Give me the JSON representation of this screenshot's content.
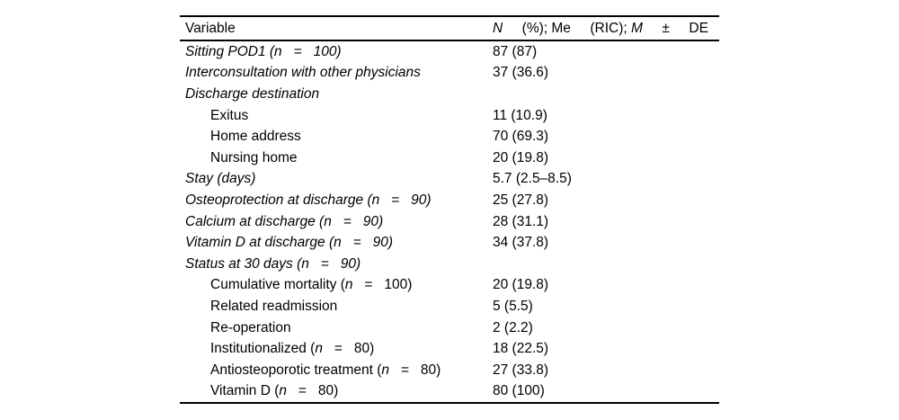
{
  "page": {
    "background": "#ffffff",
    "text_color": "#000000"
  },
  "table": {
    "header": {
      "variable": "Variable",
      "value_segments": [
        [
          {
            "text": "N",
            "italic": true
          }
        ],
        [
          {
            "text": "(%); Me",
            "italic": false
          }
        ],
        [
          {
            "text": "(RIC); ",
            "italic": false
          },
          {
            "text": "M",
            "italic": true
          }
        ],
        [
          {
            "text": "±",
            "italic": false
          }
        ],
        [
          {
            "text": "DE",
            "italic": false
          }
        ]
      ]
    },
    "rows": [
      {
        "indent": 0,
        "label": [
          {
            "text": "Sitting POD1 (n   =   100)",
            "italic": true
          }
        ],
        "value": "87 (87)"
      },
      {
        "indent": 0,
        "label": [
          {
            "text": "Interconsultation with other physicians",
            "italic": true
          }
        ],
        "value": "37 (36.6)"
      },
      {
        "indent": 0,
        "label": [
          {
            "text": "Discharge destination",
            "italic": true
          }
        ],
        "value": ""
      },
      {
        "indent": 1,
        "label": [
          {
            "text": "Exitus",
            "italic": false
          }
        ],
        "value": "11 (10.9)"
      },
      {
        "indent": 1,
        "label": [
          {
            "text": "Home address",
            "italic": false
          }
        ],
        "value": "70 (69.3)"
      },
      {
        "indent": 1,
        "label": [
          {
            "text": "Nursing home",
            "italic": false
          }
        ],
        "value": "20 (19.8)"
      },
      {
        "indent": 0,
        "label": [
          {
            "text": "Stay (days)",
            "italic": true
          }
        ],
        "value": "5.7 (2.5–8.5)"
      },
      {
        "indent": 0,
        "label": [
          {
            "text": "Osteoprotection at discharge (n   =   90)",
            "italic": true
          }
        ],
        "value": "25 (27.8)"
      },
      {
        "indent": 0,
        "label": [
          {
            "text": "Calcium at discharge (n   =   90)",
            "italic": true
          }
        ],
        "value": "28 (31.1)"
      },
      {
        "indent": 0,
        "label": [
          {
            "text": "Vitamin D at discharge (n   =   90)",
            "italic": true
          }
        ],
        "value": "34 (37.8)"
      },
      {
        "indent": 0,
        "label": [
          {
            "text": "Status at 30 days (n   =   90)",
            "italic": true
          }
        ],
        "value": ""
      },
      {
        "indent": 1,
        "label": [
          {
            "text": "Cumulative mortality (",
            "italic": false
          },
          {
            "text": "n",
            "italic": true
          },
          {
            "text": "   =   100)",
            "italic": false
          }
        ],
        "value": "20 (19.8)"
      },
      {
        "indent": 1,
        "label": [
          {
            "text": "Related readmission",
            "italic": false
          }
        ],
        "value": "5 (5.5)"
      },
      {
        "indent": 1,
        "label": [
          {
            "text": "Re-operation",
            "italic": false
          }
        ],
        "value": "2 (2.2)"
      },
      {
        "indent": 1,
        "label": [
          {
            "text": "Institutionalized (",
            "italic": false
          },
          {
            "text": "n",
            "italic": true
          },
          {
            "text": "   =   80)",
            "italic": false
          }
        ],
        "value": "18 (22.5)"
      },
      {
        "indent": 1,
        "label": [
          {
            "text": "Antiosteoporotic treatment (",
            "italic": false
          },
          {
            "text": "n",
            "italic": true
          },
          {
            "text": "   =   80)",
            "italic": false
          }
        ],
        "value": "27 (33.8)"
      },
      {
        "indent": 1,
        "label": [
          {
            "text": "Vitamin D (",
            "italic": false
          },
          {
            "text": "n",
            "italic": true
          },
          {
            "text": "   =   80)",
            "italic": false
          }
        ],
        "value": "80 (100)"
      }
    ]
  }
}
